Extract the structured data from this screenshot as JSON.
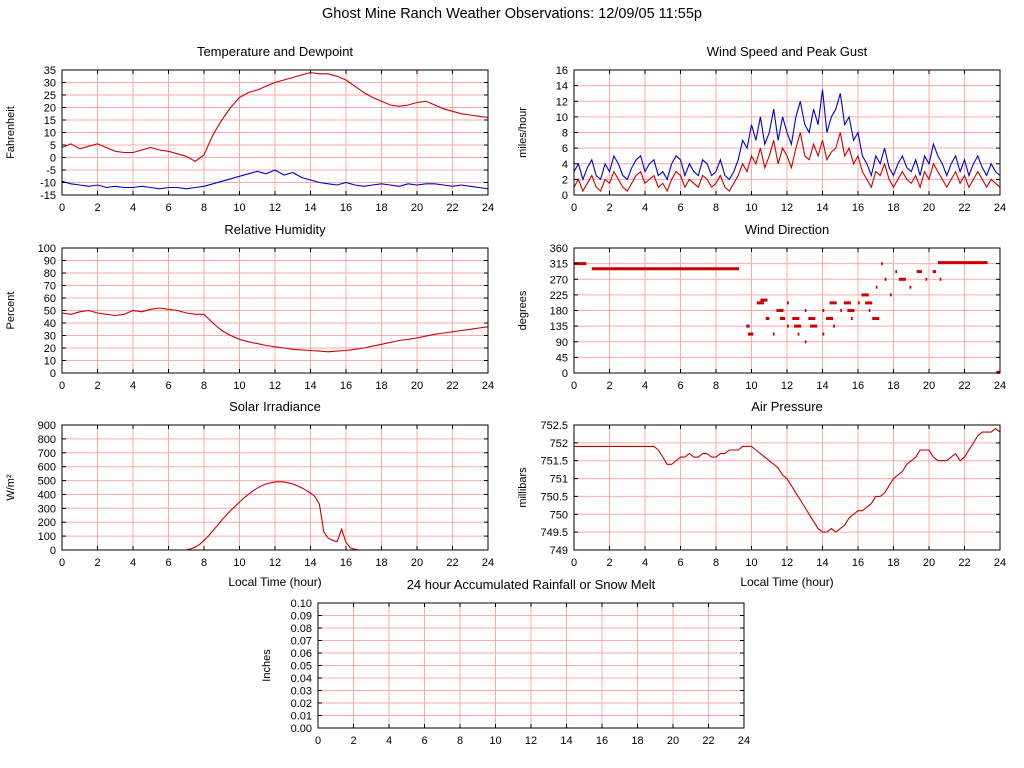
{
  "title": "Ghost Mine Ranch Weather Observations: 12/09/05 11:55p",
  "colors": {
    "red": "#cc0000",
    "blue": "#0000cc",
    "grid": "#ffaaaa",
    "axis": "#000000"
  },
  "chart_data": [
    {
      "id": "temperature-dewpoint",
      "type": "line",
      "title": "Temperature and Dewpoint",
      "ylabel": "Fahrenheit",
      "xlabel": "",
      "xlim": [
        0,
        24
      ],
      "xticks": [
        0,
        2,
        4,
        6,
        8,
        10,
        12,
        14,
        16,
        18,
        20,
        22,
        24
      ],
      "ylim": [
        -15,
        35
      ],
      "ytick_values": [
        -15,
        -10,
        -5,
        0,
        5,
        10,
        15,
        20,
        25,
        30,
        35
      ],
      "ytick_labels": [
        "-15",
        "-10",
        "-5",
        "0",
        "5",
        "10",
        "15",
        "20",
        "25",
        "30",
        "35"
      ],
      "series": [
        {
          "name": "temperature",
          "color": "#cc0000",
          "x0": 0,
          "dx": 0.5,
          "values": [
            4,
            5.5,
            3.5,
            4.5,
            5.5,
            4,
            2.5,
            2,
            2,
            3,
            4,
            3,
            2.5,
            1.5,
            0.5,
            -1.5,
            1,
            9,
            15,
            20,
            24,
            26,
            27,
            28.5,
            30,
            31,
            32,
            33,
            34,
            33.5,
            33.5,
            32.5,
            31,
            28.5,
            26,
            24,
            22.5,
            21,
            20.5,
            21,
            22,
            22.5,
            21,
            19.5,
            18.5,
            17.5,
            17,
            16.5,
            16
          ]
        },
        {
          "name": "dewpoint",
          "color": "#0000cc",
          "x0": 0,
          "dx": 0.5,
          "values": [
            -9.5,
            -10.5,
            -11,
            -11.5,
            -11,
            -12,
            -11.5,
            -12,
            -12,
            -11.5,
            -12,
            -12.5,
            -12,
            -12,
            -12.5,
            -12,
            -11.5,
            -10.5,
            -9.5,
            -8.5,
            -7.5,
            -6.5,
            -5.5,
            -6.5,
            -5,
            -7,
            -6,
            -8,
            -9,
            -10,
            -10.5,
            -11,
            -10,
            -11,
            -11.5,
            -11,
            -10.5,
            -11,
            -11.5,
            -10.5,
            -11,
            -10.5,
            -10.5,
            -11,
            -11.5,
            -11,
            -11.5,
            -12,
            -12.5
          ]
        }
      ]
    },
    {
      "id": "wind-speed",
      "type": "line",
      "title": "Wind Speed and Peak Gust",
      "ylabel": "miles/hour",
      "xlabel": "",
      "xlim": [
        0,
        24
      ],
      "xticks": [
        0,
        2,
        4,
        6,
        8,
        10,
        12,
        14,
        16,
        18,
        20,
        22,
        24
      ],
      "ylim": [
        0,
        16
      ],
      "ytick_values": [
        0,
        2,
        4,
        6,
        8,
        10,
        12,
        14,
        16
      ],
      "ytick_labels": [
        "0",
        "2",
        "4",
        "6",
        "8",
        "10",
        "12",
        "14",
        "16"
      ],
      "series": [
        {
          "name": "peak-gust",
          "color": "#0000cc",
          "x0": 0,
          "dx": 0.25,
          "values": [
            3,
            4,
            2,
            3.5,
            4.5,
            2.5,
            2,
            4,
            3,
            5,
            4,
            2.5,
            2,
            3.5,
            4.5,
            5,
            3,
            4,
            4.5,
            2.5,
            3,
            2,
            4,
            5,
            4.5,
            2.5,
            4,
            3,
            2.5,
            4.5,
            4,
            2.5,
            3,
            4.5,
            2.5,
            2,
            3,
            4.5,
            7,
            6,
            9,
            7,
            10,
            6.5,
            8,
            11,
            7,
            10,
            8,
            6.5,
            10,
            12,
            9,
            8,
            11,
            9,
            13.5,
            8,
            10,
            11,
            13,
            9,
            10,
            7,
            8,
            5,
            4,
            2.5,
            5,
            4,
            6,
            3.5,
            2.5,
            4,
            5,
            3.5,
            3,
            4.5,
            2.5,
            5,
            4,
            6.5,
            5,
            4,
            2.5,
            4,
            5,
            3,
            4.5,
            2.5,
            4,
            5,
            3.5,
            2.5,
            4,
            3,
            2.5
          ]
        },
        {
          "name": "wind-speed",
          "color": "#cc0000",
          "x0": 0,
          "dx": 0.25,
          "values": [
            1,
            2,
            0.5,
            1.5,
            2.5,
            1,
            0.5,
            2,
            1.5,
            3,
            2,
            1,
            0.5,
            1.5,
            2.5,
            3,
            1.5,
            2,
            2.5,
            1,
            1.5,
            0.5,
            2,
            3,
            2.5,
            1,
            2,
            1.5,
            1,
            2.5,
            2,
            1,
            1.5,
            2.5,
            1,
            0.5,
            1.5,
            2.5,
            4,
            3,
            5,
            4,
            6,
            3.5,
            5,
            7,
            4,
            6,
            5,
            3.5,
            6,
            8,
            5,
            4.5,
            6.5,
            5,
            7,
            4.5,
            5.5,
            6,
            8,
            5,
            6,
            4,
            5,
            3,
            2,
            1,
            3,
            2.5,
            4,
            2,
            1,
            2,
            3,
            2,
            1.5,
            2.5,
            1,
            3,
            2,
            4,
            3,
            2,
            1,
            2,
            3,
            1.5,
            2.5,
            1,
            2,
            3,
            2,
            1,
            2,
            1.5,
            1
          ]
        }
      ]
    },
    {
      "id": "humidity",
      "type": "line",
      "title": "Relative Humidity",
      "ylabel": "Percent",
      "xlabel": "",
      "xlim": [
        0,
        24
      ],
      "xticks": [
        0,
        2,
        4,
        6,
        8,
        10,
        12,
        14,
        16,
        18,
        20,
        22,
        24
      ],
      "ylim": [
        0,
        100
      ],
      "ytick_values": [
        0,
        10,
        20,
        30,
        40,
        50,
        60,
        70,
        80,
        90,
        100
      ],
      "ytick_labels": [
        "0",
        "10",
        "20",
        "30",
        "40",
        "50",
        "60",
        "70",
        "80",
        "90",
        "100"
      ],
      "series": [
        {
          "name": "relative-humidity",
          "color": "#cc0000",
          "x0": 0,
          "dx": 0.5,
          "values": [
            48,
            47,
            49,
            50,
            48,
            47,
            46,
            47,
            50,
            49,
            51,
            52,
            51,
            50,
            48,
            47,
            47,
            40,
            34,
            30,
            27,
            25,
            23.5,
            22,
            21,
            20,
            19,
            18.5,
            18,
            17.5,
            17,
            17.5,
            18,
            19,
            20,
            21.5,
            23,
            24.5,
            26,
            27,
            28,
            29.5,
            31,
            32,
            33,
            34,
            35,
            36,
            37
          ]
        }
      ]
    },
    {
      "id": "wind-direction",
      "type": "scatter",
      "title": "Wind Direction",
      "ylabel": "degrees",
      "xlabel": "",
      "xlim": [
        0,
        24
      ],
      "xticks": [
        0,
        2,
        4,
        6,
        8,
        10,
        12,
        14,
        16,
        18,
        20,
        22,
        24
      ],
      "ylim": [
        0,
        360
      ],
      "ytick_values": [
        0,
        45,
        90,
        135,
        180,
        225,
        270,
        315,
        360
      ],
      "ytick_labels": [
        "0",
        "45",
        "90",
        "135",
        "180",
        "225",
        "270",
        "315",
        "360"
      ],
      "series": [
        {
          "name": "direction",
          "color": "#cc0000",
          "segments": [
            [
              0,
              0.7,
              315
            ],
            [
              1.0,
              9.3,
              300
            ],
            [
              9.7,
              9.9,
              135
            ],
            [
              9.8,
              10.1,
              112
            ],
            [
              10.3,
              10.7,
              202
            ],
            [
              10.5,
              10.9,
              210
            ],
            [
              10.8,
              11.0,
              157
            ],
            [
              11.2,
              11.3,
              112
            ],
            [
              11.4,
              11.8,
              180
            ],
            [
              11.6,
              11.9,
              157
            ],
            [
              12.0,
              12.1,
              202
            ],
            [
              12.0,
              12.1,
              135
            ],
            [
              12.3,
              12.7,
              157
            ],
            [
              12.4,
              12.8,
              135
            ],
            [
              12.6,
              12.7,
              112
            ],
            [
              13.0,
              13.1,
              180
            ],
            [
              13.0,
              13.1,
              90
            ],
            [
              13.2,
              13.6,
              157
            ],
            [
              13.3,
              13.7,
              135
            ],
            [
              14.0,
              14.1,
              180
            ],
            [
              14.0,
              14.1,
              112
            ],
            [
              14.2,
              14.6,
              157
            ],
            [
              14.4,
              14.8,
              202
            ],
            [
              14.6,
              14.7,
              135
            ],
            [
              15.0,
              15.1,
              180
            ],
            [
              15.2,
              15.6,
              202
            ],
            [
              15.4,
              15.8,
              180
            ],
            [
              15.6,
              15.7,
              157
            ],
            [
              16.0,
              16.1,
              202
            ],
            [
              16.2,
              16.6,
              225
            ],
            [
              16.4,
              16.8,
              202
            ],
            [
              16.6,
              16.7,
              180
            ],
            [
              16.8,
              17.2,
              157
            ],
            [
              17.0,
              17.1,
              247
            ],
            [
              17.3,
              17.4,
              315
            ],
            [
              17.5,
              17.6,
              270
            ],
            [
              17.8,
              17.9,
              225
            ],
            [
              18.1,
              18.2,
              292
            ],
            [
              18.3,
              18.7,
              270
            ],
            [
              18.9,
              19.0,
              247
            ],
            [
              19.3,
              19.6,
              292
            ],
            [
              19.8,
              19.9,
              270
            ],
            [
              20.2,
              20.4,
              292
            ],
            [
              20.6,
              20.7,
              270
            ],
            [
              20.5,
              23.3,
              318
            ],
            [
              23.8,
              24.0,
              2
            ]
          ]
        }
      ]
    },
    {
      "id": "solar",
      "type": "line",
      "title": "Solar Irradiance",
      "ylabel": "W/m²",
      "xlabel": "Local Time (hour)",
      "xlim": [
        0,
        24
      ],
      "xticks": [
        0,
        2,
        4,
        6,
        8,
        10,
        12,
        14,
        16,
        18,
        20,
        22,
        24
      ],
      "ylim": [
        0,
        900
      ],
      "ytick_values": [
        0,
        100,
        200,
        300,
        400,
        500,
        600,
        700,
        800,
        900
      ],
      "ytick_labels": [
        "0",
        "100",
        "200",
        "300",
        "400",
        "500",
        "600",
        "700",
        "800",
        "900"
      ],
      "series": [
        {
          "name": "irradiance",
          "color": "#cc0000",
          "x0": 0,
          "dx": 0.25,
          "values": [
            0,
            0,
            0,
            0,
            0,
            0,
            0,
            0,
            0,
            0,
            0,
            0,
            0,
            0,
            0,
            0,
            0,
            0,
            0,
            0,
            0,
            0,
            0,
            0,
            0,
            0,
            0,
            0,
            0,
            8,
            20,
            40,
            70,
            100,
            140,
            175,
            215,
            250,
            285,
            315,
            345,
            375,
            400,
            425,
            445,
            462,
            475,
            484,
            490,
            492,
            490,
            484,
            475,
            462,
            448,
            430,
            410,
            385,
            330,
            130,
            85,
            70,
            60,
            150,
            55,
            15,
            5,
            0,
            0,
            0,
            0,
            0,
            0,
            0,
            0,
            0,
            0,
            0,
            0,
            0,
            0,
            0,
            0,
            0,
            0,
            0,
            0,
            0,
            0,
            0,
            0,
            0,
            0,
            0,
            0,
            0,
            0
          ]
        }
      ]
    },
    {
      "id": "pressure",
      "type": "line",
      "title": "Air Pressure",
      "ylabel": "millibars",
      "xlabel": "Local Time (hour)",
      "xlim": [
        0,
        24
      ],
      "xticks": [
        0,
        2,
        4,
        6,
        8,
        10,
        12,
        14,
        16,
        18,
        20,
        22,
        24
      ],
      "ylim": [
        749,
        752.5
      ],
      "ytick_values": [
        749,
        749.5,
        750,
        750.5,
        751,
        751.5,
        752,
        752.5
      ],
      "ytick_labels": [
        "749",
        "749.5",
        "750",
        "750.5",
        "751",
        "751.5",
        "752",
        "752.5"
      ],
      "series": [
        {
          "name": "pressure",
          "color": "#cc0000",
          "x0": 0,
          "dx": 0.25,
          "values": [
            751.9,
            751.9,
            751.9,
            751.9,
            751.9,
            751.9,
            751.9,
            751.9,
            751.9,
            751.9,
            751.9,
            751.9,
            751.9,
            751.9,
            751.9,
            751.9,
            751.9,
            751.9,
            751.9,
            751.8,
            751.6,
            751.4,
            751.4,
            751.5,
            751.6,
            751.6,
            751.7,
            751.6,
            751.6,
            751.7,
            751.7,
            751.6,
            751.6,
            751.7,
            751.7,
            751.8,
            751.8,
            751.8,
            751.9,
            751.9,
            751.9,
            751.8,
            751.7,
            751.6,
            751.5,
            751.4,
            751.3,
            751.1,
            751.0,
            750.8,
            750.6,
            750.4,
            750.2,
            750.0,
            749.8,
            749.6,
            749.5,
            749.5,
            749.6,
            749.5,
            749.6,
            749.7,
            749.9,
            750.0,
            750.1,
            750.1,
            750.2,
            750.3,
            750.5,
            750.5,
            750.6,
            750.8,
            751.0,
            751.1,
            751.2,
            751.4,
            751.5,
            751.6,
            751.8,
            751.8,
            751.8,
            751.6,
            751.5,
            751.5,
            751.5,
            751.6,
            751.7,
            751.5,
            751.6,
            751.8,
            752.0,
            752.2,
            752.3,
            752.3,
            752.3,
            752.4,
            752.3
          ]
        }
      ]
    },
    {
      "id": "rainfall",
      "type": "line",
      "title": "24 hour Accumulated Rainfall or Snow Melt",
      "ylabel": "Inches",
      "xlabel": "",
      "xlim": [
        0,
        24
      ],
      "xticks": [
        0,
        2,
        4,
        6,
        8,
        10,
        12,
        14,
        16,
        18,
        20,
        22,
        24
      ],
      "ylim": [
        0,
        0.1
      ],
      "ytick_values": [
        0,
        0.01,
        0.02,
        0.03,
        0.04,
        0.05,
        0.06,
        0.07,
        0.08,
        0.09,
        0.1
      ],
      "ytick_labels": [
        "0.00",
        "0.01",
        "0.02",
        "0.03",
        "0.04",
        "0.05",
        "0.06",
        "0.07",
        "0.08",
        "0.09",
        "0.10"
      ],
      "series": [
        {
          "name": "rainfall",
          "color": "#cc0000",
          "x0": 0,
          "dx": 24,
          "values": [
            0,
            0
          ]
        }
      ]
    }
  ]
}
